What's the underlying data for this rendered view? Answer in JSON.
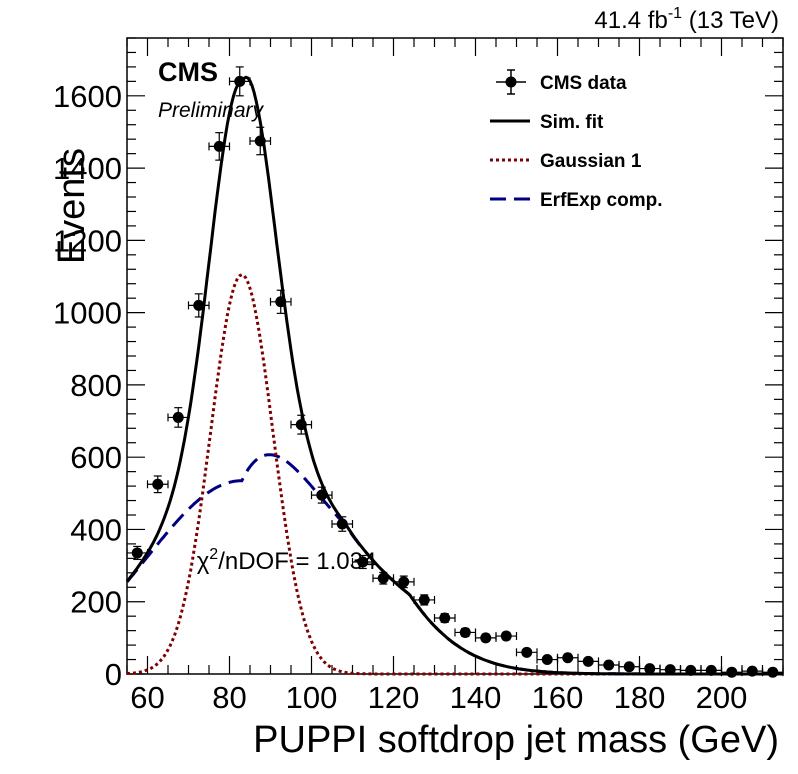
{
  "chart_data": {
    "type": "scatter",
    "header": {
      "cms": "CMS",
      "preliminary": "Preliminary",
      "lumi_main": "41.4 fb",
      "lumi_exp": "-1",
      "lumi_energy": " (13 TeV)"
    },
    "xlabel": "PUPPI softdrop jet mass (GeV)",
    "ylabel": "Events",
    "xlim": [
      55,
      215
    ],
    "ylim": [
      0,
      1760
    ],
    "x_ticks": [
      60,
      80,
      100,
      120,
      140,
      160,
      180,
      200
    ],
    "y_ticks": [
      0,
      200,
      400,
      600,
      800,
      1000,
      1200,
      1400,
      1600
    ],
    "x_tick_labels": [
      "60",
      "80",
      "100",
      "120",
      "140",
      "160",
      "180",
      "200"
    ],
    "y_tick_labels": [
      "0",
      "200",
      "400",
      "600",
      "800",
      "1000",
      "1200",
      "1400",
      "1600"
    ],
    "grid": false,
    "legend_position": "top-right",
    "legend": [
      {
        "label": "CMS data",
        "style": "marker",
        "color": "#000000"
      },
      {
        "label": "Sim. fit",
        "style": "solid",
        "color": "#000000"
      },
      {
        "label": "Gaussian 1",
        "style": "dotted",
        "color": "#800000"
      },
      {
        "label": "ErfExp comp.",
        "style": "dashed",
        "color": "#000080"
      }
    ],
    "annotation": {
      "chi_symbol": "χ",
      "chi_exp": "2",
      "chi_text": "/nDOF = 1.034",
      "x": 72,
      "y": 310
    },
    "data": {
      "name": "CMS data",
      "bin_width": 5,
      "x": [
        57.5,
        62.5,
        67.5,
        72.5,
        77.5,
        82.5,
        87.5,
        92.5,
        97.5,
        102.5,
        107.5,
        112.5,
        117.5,
        122.5,
        127.5,
        132.5,
        137.5,
        142.5,
        147.5,
        152.5,
        157.5,
        162.5,
        167.5,
        172.5,
        177.5,
        182.5,
        187.5,
        192.5,
        197.5,
        202.5,
        207.5,
        212.5
      ],
      "y": [
        335,
        525,
        710,
        1020,
        1460,
        1640,
        1475,
        1030,
        690,
        495,
        415,
        310,
        265,
        255,
        205,
        155,
        115,
        100,
        105,
        60,
        40,
        45,
        35,
        25,
        20,
        15,
        12,
        10,
        10,
        5,
        8,
        5
      ],
      "yerr": [
        18,
        23,
        27,
        32,
        38,
        40,
        38,
        32,
        26,
        22,
        20,
        18,
        16,
        16,
        14,
        12,
        11,
        10,
        10,
        8,
        6,
        7,
        6,
        5,
        4,
        4,
        3,
        3,
        3,
        2,
        3,
        2
      ]
    },
    "curves": [
      {
        "name": "Sim. fit",
        "color": "#000000"
      },
      {
        "name": "Gaussian 1",
        "color": "#800000"
      },
      {
        "name": "ErfExp comp.",
        "color": "#000080"
      }
    ]
  }
}
